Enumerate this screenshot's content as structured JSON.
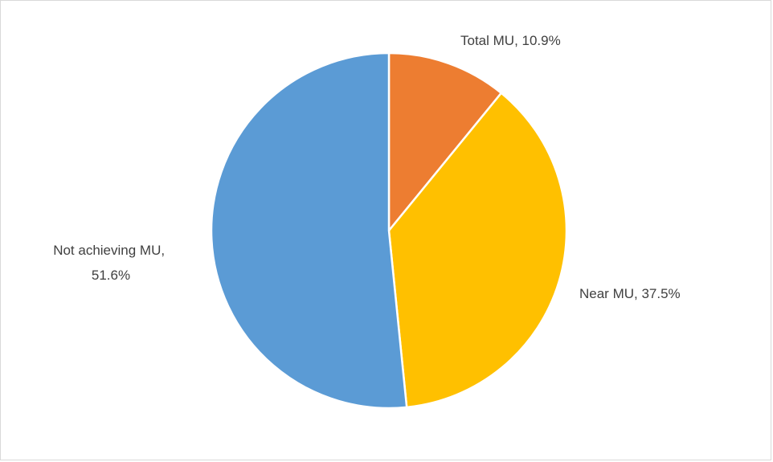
{
  "chart_data": {
    "type": "pie",
    "title": "",
    "slices": [
      {
        "label": "Total MU",
        "value": 10.9,
        "display": "Total MU,  10.9%",
        "color": "#ED7D31"
      },
      {
        "label": "Near MU",
        "value": 37.5,
        "display": "Near MU,  37.5%",
        "color": "#FFC000"
      },
      {
        "label": "Not achieving MU",
        "value": 51.6,
        "display_lines": [
          "Not achieving MU,",
          "51.6%"
        ],
        "color": "#5B9BD5"
      }
    ],
    "start_angle": "top",
    "direction": "clockwise",
    "slice_border_color": "#FFFFFF",
    "legend": "none"
  }
}
